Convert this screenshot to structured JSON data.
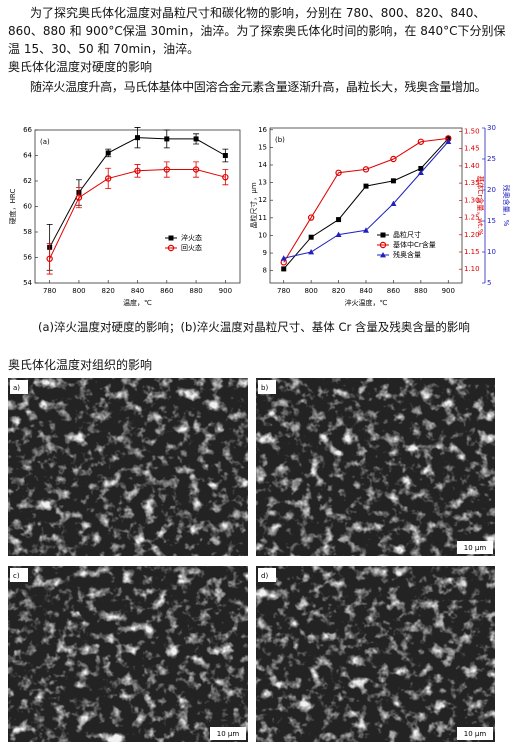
{
  "paragraphs": [
    "为了探究奥氏体化温度对晶粒尺寸和碳化物的影响，分别在 780、800、820、840、860、880 和 900°C保温 30min，油淬。为了探索奥氏体化时间的影响，在 840°C下分别保温 15、30、50 和 70min，油淬。",
    "随淬火温度升高，马氏体基体中固溶合金元素含量逐渐升高，晶粒长大，残奥含量增加。"
  ],
  "headings": [
    "奥氏体化温度对硬度的影响",
    "奥氏体化温度对组织的影响"
  ],
  "caption": "(a)淬火温度对硬度的影响；(b)淬火温度对晶粒尺寸、基体 Cr 含量及残奥含量的影响",
  "figures": [
    {
      "label": "a)"
    },
    {
      "label": "b)",
      "scale": "10 μm"
    },
    {
      "label": "c)",
      "scale": "10 μm"
    },
    {
      "label": "d)",
      "scale": "10 μm"
    }
  ],
  "chart_data": [
    {
      "type": "line",
      "label": "(a)",
      "xlabel": "温度，℃",
      "ylabel": "硬度，HRC",
      "x": [
        780,
        800,
        820,
        840,
        860,
        880,
        900
      ],
      "xlim": [
        770,
        910
      ],
      "xticks": [
        780,
        800,
        820,
        840,
        860,
        880,
        900
      ],
      "ylim": [
        54,
        66
      ],
      "yticks": [
        54,
        56,
        58,
        60,
        62,
        64,
        66
      ],
      "legend": "lower right",
      "series": [
        {
          "name": "淬火态",
          "color": "#000000",
          "marker": "square",
          "values": [
            56.8,
            61.1,
            64.2,
            65.4,
            65.3,
            65.3,
            64.0
          ],
          "errors": [
            1.8,
            1.0,
            0.3,
            0.8,
            0.7,
            0.4,
            0.5
          ]
        },
        {
          "name": "回火态",
          "color": "#e00000",
          "marker": "circle",
          "values": [
            55.9,
            60.7,
            62.2,
            62.8,
            62.9,
            62.9,
            62.3
          ],
          "errors": [
            1.2,
            0.8,
            0.8,
            0.5,
            0.6,
            0.6,
            0.6
          ]
        }
      ]
    },
    {
      "type": "line",
      "label": "(b)",
      "xlabel": "淬火温度，℃",
      "ylabel": "晶粒尺寸，μm",
      "y2label": "基体Cr含量，wt.%",
      "y3label": "残奥含量，%",
      "y2color": "#e00000",
      "y3color": "#2020c0",
      "x": [
        780,
        800,
        820,
        840,
        860,
        880,
        900
      ],
      "xlim": [
        770,
        910
      ],
      "xticks": [
        780,
        800,
        820,
        840,
        860,
        880,
        900
      ],
      "ylim": [
        7.3,
        16.1
      ],
      "yticks": [
        8,
        9,
        10,
        11,
        12,
        13,
        14,
        15,
        16
      ],
      "y2lim": [
        1.06,
        1.51
      ],
      "y2ticks": [
        {
          "value": 1.1,
          "label": "1.10"
        },
        1.15,
        {
          "value": 1.2,
          "label": "1.20"
        },
        1.25,
        {
          "value": 1.3,
          "label": "1.30"
        },
        1.35,
        {
          "value": 1.4,
          "label": "1.40"
        },
        1.45,
        {
          "value": 1.5,
          "label": "1.50"
        }
      ],
      "y3lim": [
        5,
        30
      ],
      "y3ticks": [
        5,
        10,
        15,
        20,
        25,
        30
      ],
      "legend": "lower right",
      "series": [
        {
          "name": "晶粒尺寸",
          "color": "#000000",
          "marker": "square",
          "values": [
            8.1,
            9.9,
            10.9,
            12.8,
            13.1,
            13.8,
            15.5
          ]
        },
        {
          "name": "基体中Cr含量",
          "color": "#e00000",
          "marker": "circle",
          "axis": "y2",
          "values": [
            1.12,
            1.25,
            1.38,
            1.39,
            1.42,
            1.47,
            1.48
          ]
        },
        {
          "name": "残奥含量",
          "color": "#2020c0",
          "marker": "triangle",
          "axis": "y3",
          "values": [
            9.0,
            10.0,
            12.8,
            13.5,
            17.8,
            22.8,
            27.8
          ]
        }
      ]
    }
  ]
}
